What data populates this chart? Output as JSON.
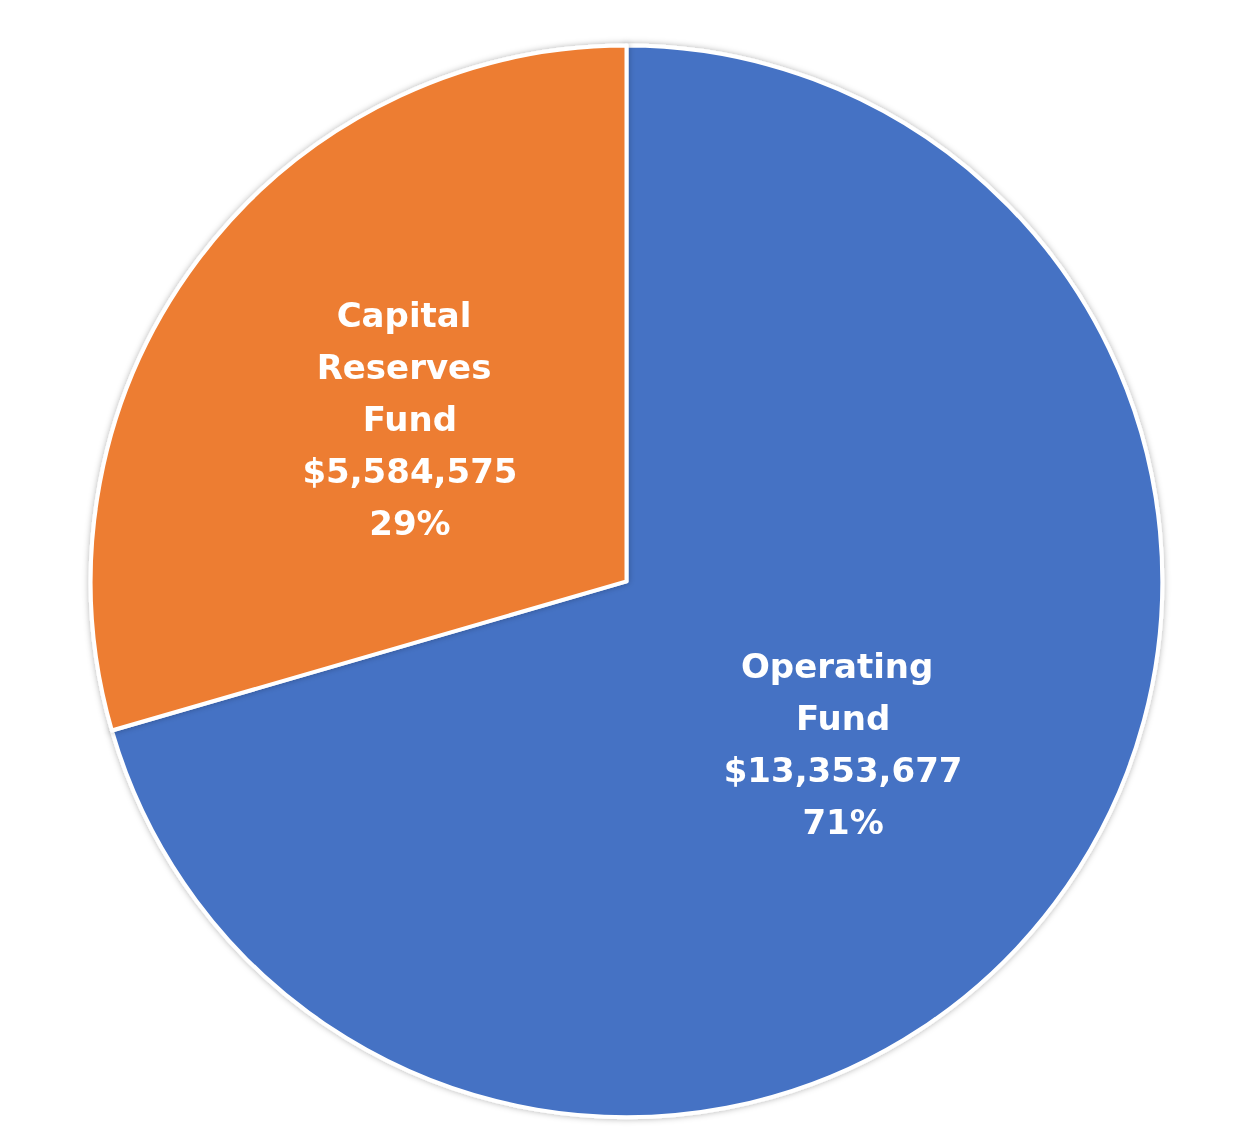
{
  "chart_data": {
    "type": "pie",
    "categories": [
      "Operating Fund",
      "Capital Reserves Fund"
    ],
    "values": [
      13353677,
      5584575
    ],
    "colors": [
      "#4472c4",
      "#ed7d31"
    ],
    "value_labels": [
      "$13,353,677\n71%",
      "$5,584,575\n29%"
    ],
    "legend": false
  }
}
